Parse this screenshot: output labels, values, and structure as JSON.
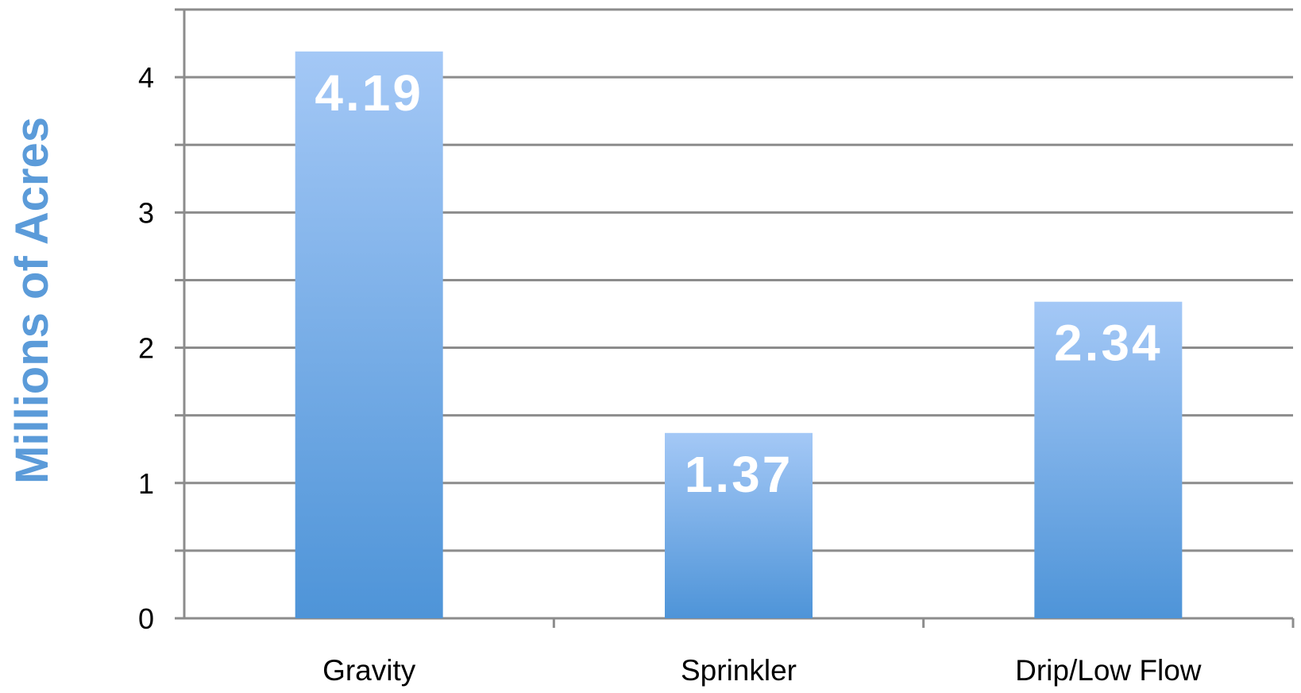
{
  "chart_data": {
    "type": "bar",
    "title": "",
    "xlabel": "",
    "ylabel": "Millions of Acres",
    "categories": [
      "Gravity",
      "Sprinkler",
      "Drip/Low Flow"
    ],
    "values": [
      4.19,
      1.37,
      2.34
    ],
    "data_labels": [
      "4.19",
      "1.37",
      "2.34"
    ],
    "ylim": [
      0,
      4.5
    ],
    "y_ticks": [
      0,
      1,
      2,
      3,
      4
    ],
    "y_gridlines_every": 0.5,
    "grid": true,
    "legend": "none",
    "colors": {
      "bar_top": "#a4c8f6",
      "bar_bottom": "#4e94d8",
      "ylabel": "#5b9bd9",
      "grid": "#8c8c8c"
    }
  }
}
